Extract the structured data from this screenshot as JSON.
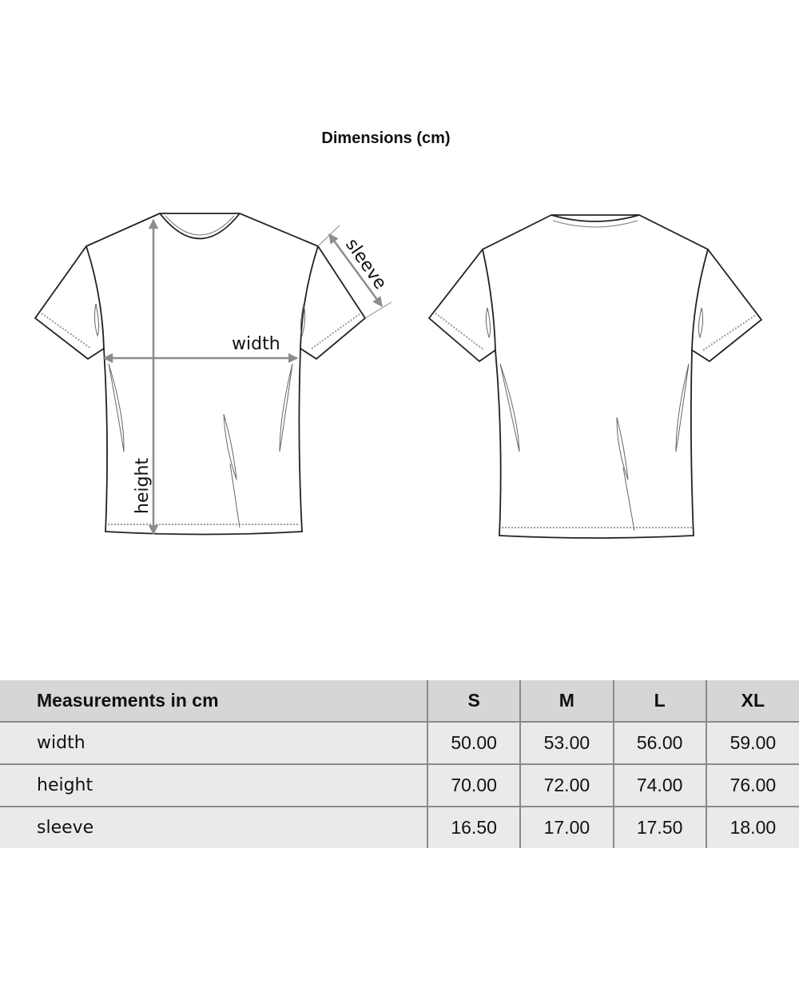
{
  "title": "Dimensions (cm)",
  "diagram": {
    "labels": {
      "width": "width",
      "height": "height",
      "sleeve": "sleeve"
    },
    "arrow_color": "#8c8c8c"
  },
  "table": {
    "header": [
      "Measurements in cm",
      "S",
      "M",
      "L",
      "XL"
    ],
    "rows": [
      [
        "width",
        "50.00",
        "53.00",
        "56.00",
        "59.00"
      ],
      [
        "height",
        "70.00",
        "72.00",
        "74.00",
        "76.00"
      ],
      [
        "sleeve",
        "16.50",
        "17.00",
        "17.50",
        "18.00"
      ]
    ]
  }
}
